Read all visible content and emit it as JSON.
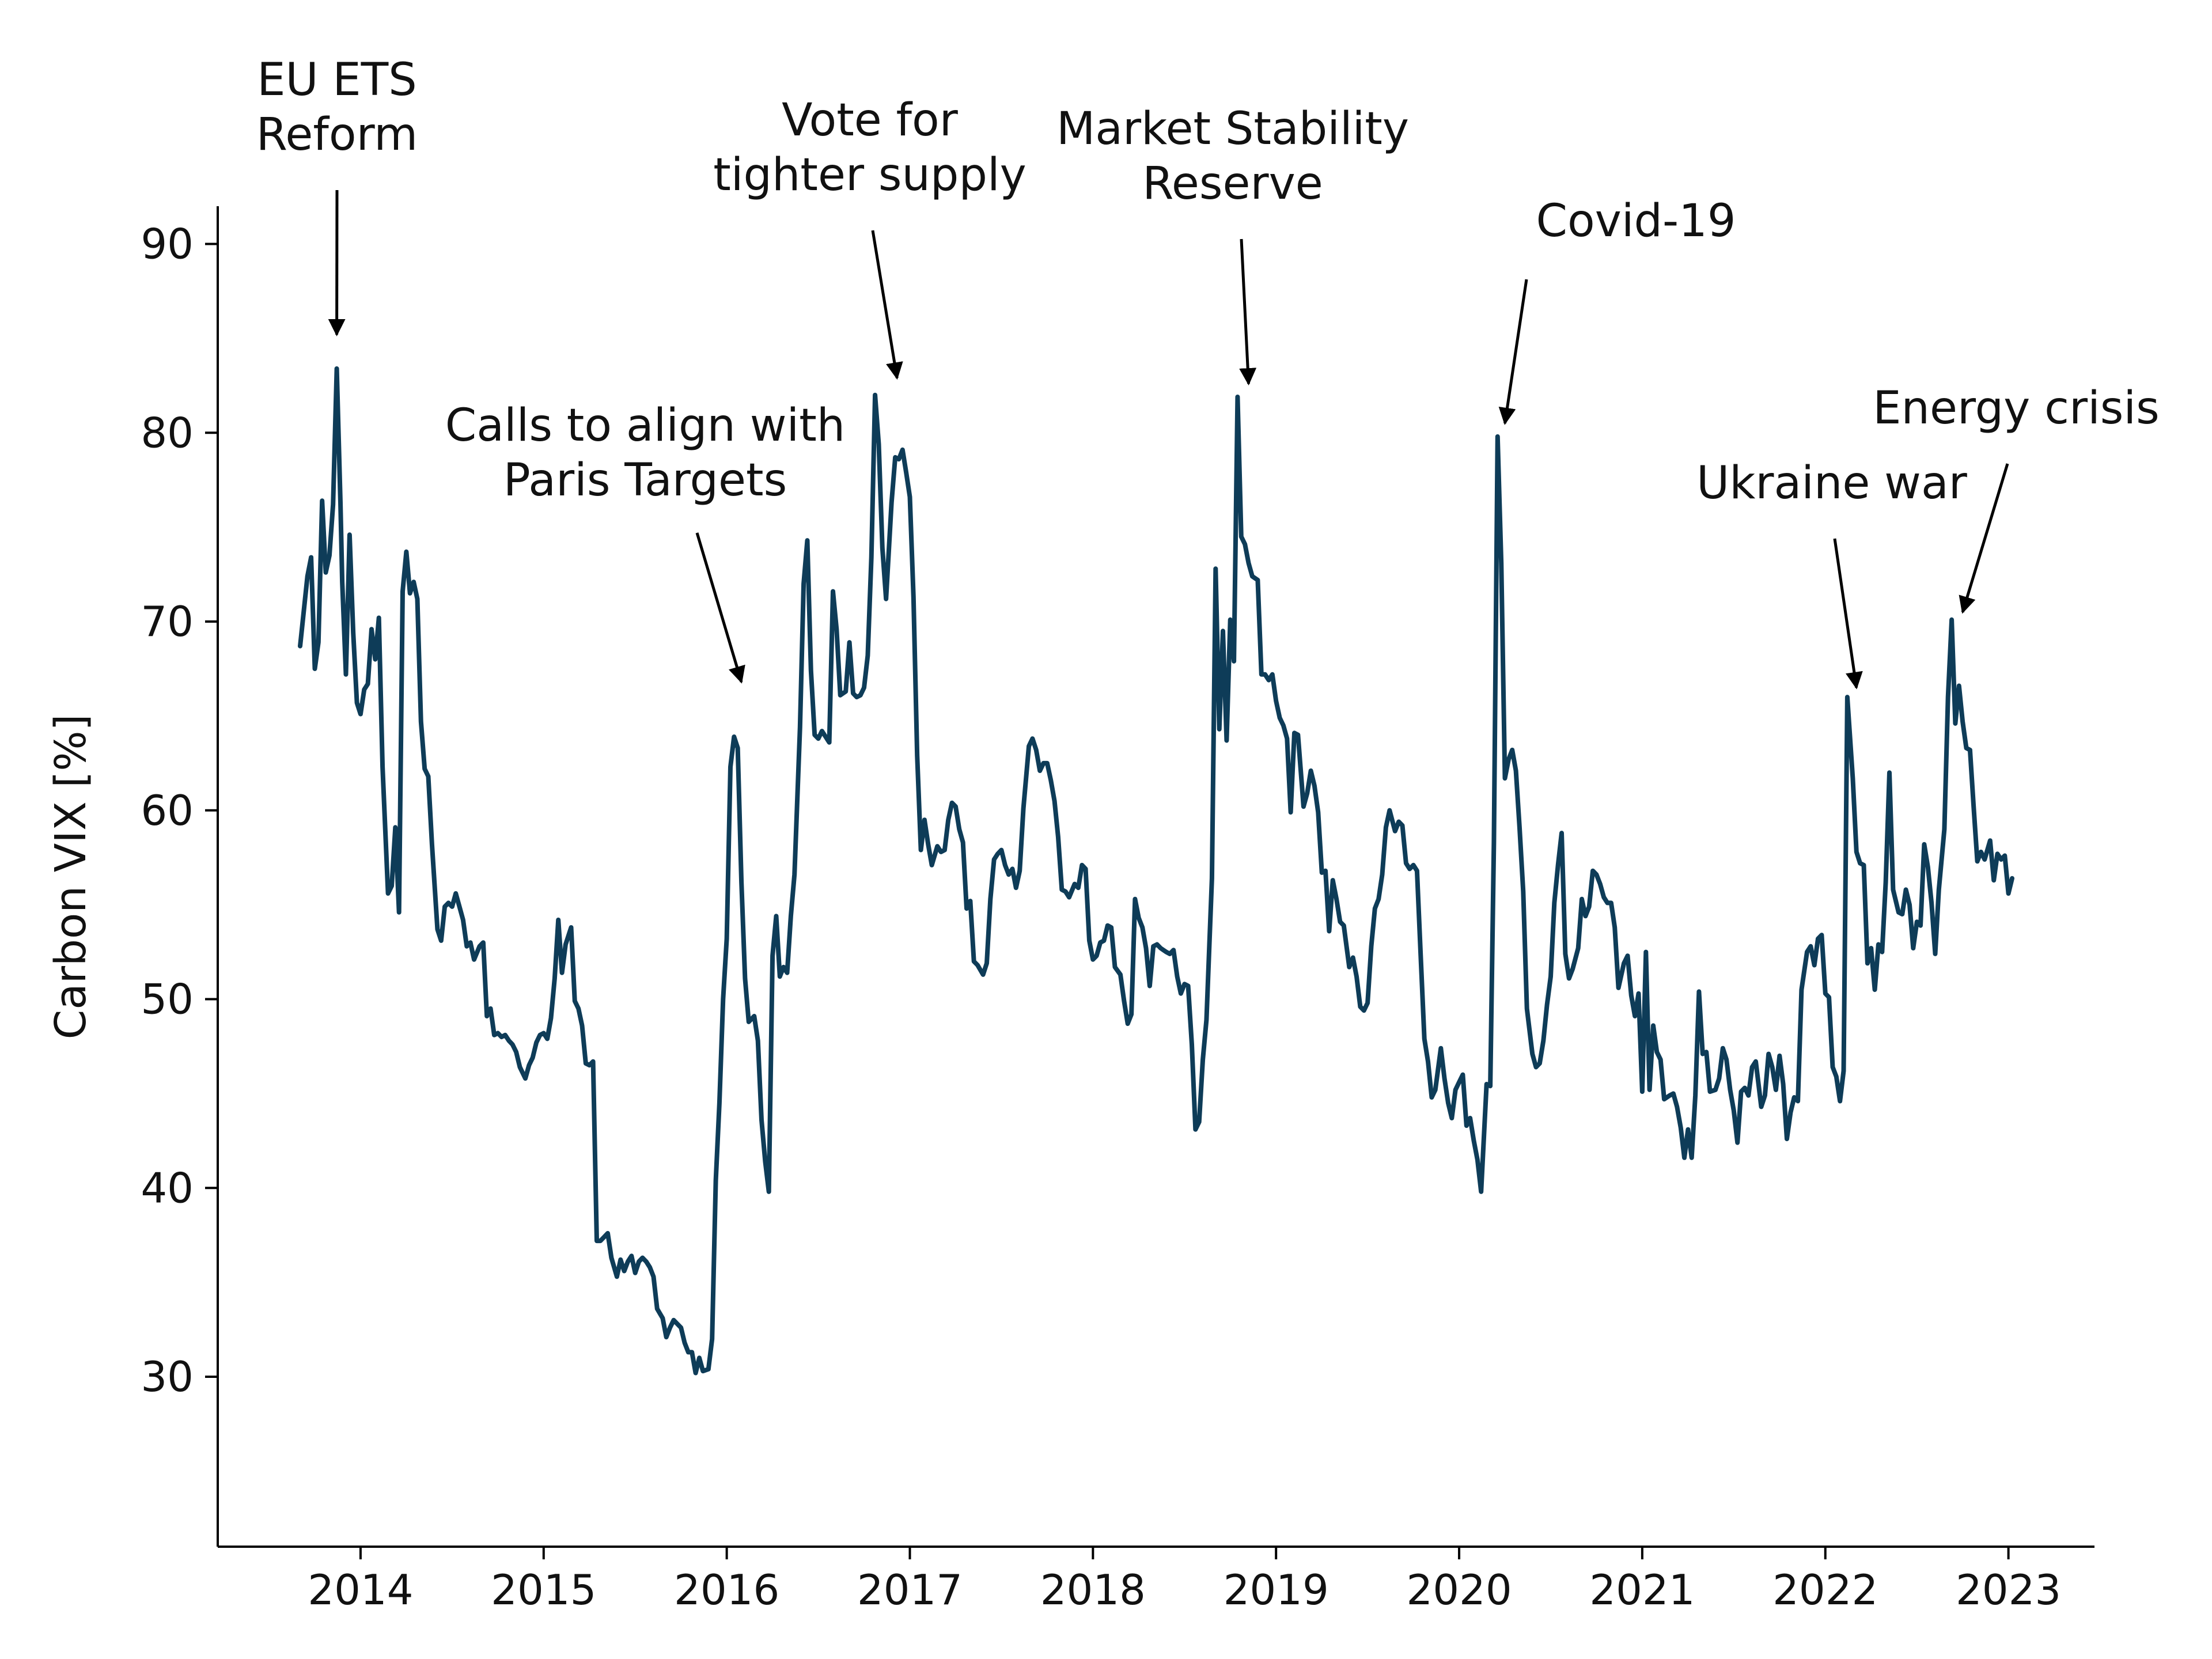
{
  "chart_data": {
    "type": "line",
    "title": "",
    "xlabel": "",
    "ylabel": "Carbon VIX [%]",
    "xlim": [
      2013.22,
      2023.47
    ],
    "ylim": [
      21.0,
      92.0
    ],
    "grid": false,
    "legend": "none",
    "x_ticks": [
      {
        "value": 2014,
        "label": "2014"
      },
      {
        "value": 2015,
        "label": "2015"
      },
      {
        "value": 2016,
        "label": "2016"
      },
      {
        "value": 2017,
        "label": "2017"
      },
      {
        "value": 2018,
        "label": "2018"
      },
      {
        "value": 2019,
        "label": "2019"
      },
      {
        "value": 2020,
        "label": "2020"
      },
      {
        "value": 2021,
        "label": "2021"
      },
      {
        "value": 2022,
        "label": "2022"
      },
      {
        "value": 2023,
        "label": "2023"
      }
    ],
    "y_ticks": [
      {
        "value": 30,
        "label": "30"
      },
      {
        "value": 40,
        "label": "40"
      },
      {
        "value": 50,
        "label": "50"
      },
      {
        "value": 60,
        "label": "60"
      },
      {
        "value": 70,
        "label": "70"
      },
      {
        "value": 80,
        "label": "80"
      },
      {
        "value": 90,
        "label": "90"
      }
    ],
    "series": [
      {
        "color": "#0e3c58",
        "x": [
          2013.67,
          2013.71,
          2013.73,
          2013.75,
          2013.77,
          2013.79,
          2013.81,
          2013.83,
          2013.85,
          2013.87,
          2013.89,
          2013.9,
          2013.92,
          2013.94,
          2013.96,
          2013.98,
          2014.0,
          2014.02,
          2014.04,
          2014.06,
          2014.08,
          2014.1,
          2014.12,
          2014.15,
          2014.17,
          2014.19,
          2014.21,
          2014.23,
          2014.25,
          2014.27,
          2014.29,
          2014.31,
          2014.33,
          2014.35,
          2014.37,
          2014.39,
          2014.42,
          2014.44,
          2014.46,
          2014.48,
          2014.5,
          2014.52,
          2014.54,
          2014.56,
          2014.58,
          2014.6,
          2014.62,
          2014.65,
          2014.67,
          2014.69,
          2014.71,
          2014.73,
          2014.75,
          2014.77,
          2014.79,
          2014.81,
          2014.83,
          2014.85,
          2014.87,
          2014.9,
          2014.92,
          2014.94,
          2014.96,
          2014.98,
          2015.0,
          2015.02,
          2015.04,
          2015.06,
          2015.08,
          2015.1,
          2015.12,
          2015.15,
          2015.17,
          2015.19,
          2015.21,
          2015.23,
          2015.25,
          2015.27,
          2015.29,
          2015.31,
          2015.33,
          2015.35,
          2015.37,
          2015.4,
          2015.42,
          2015.44,
          2015.46,
          2015.48,
          2015.5,
          2015.52,
          2015.54,
          2015.56,
          2015.58,
          2015.6,
          2015.62,
          2015.65,
          2015.67,
          2015.69,
          2015.71,
          2015.73,
          2015.75,
          2015.77,
          2015.79,
          2015.81,
          2015.83,
          2015.85,
          2015.87,
          2015.9,
          2015.92,
          2015.94,
          2015.96,
          2015.98,
          2016.0,
          2016.02,
          2016.04,
          2016.06,
          2016.08,
          2016.1,
          2016.12,
          2016.15,
          2016.17,
          2016.19,
          2016.21,
          2016.23,
          2016.25,
          2016.27,
          2016.29,
          2016.31,
          2016.33,
          2016.35,
          2016.37,
          2016.4,
          2016.42,
          2016.44,
          2016.46,
          2016.48,
          2016.5,
          2016.52,
          2016.54,
          2016.56,
          2016.58,
          2016.6,
          2016.62,
          2016.65,
          2016.67,
          2016.69,
          2016.71,
          2016.73,
          2016.75,
          2016.77,
          2016.79,
          2016.81,
          2016.83,
          2016.85,
          2016.87,
          2016.9,
          2016.92,
          2016.94,
          2016.96,
          2016.98,
          2017.0,
          2017.02,
          2017.04,
          2017.06,
          2017.08,
          2017.1,
          2017.12,
          2017.15,
          2017.17,
          2017.19,
          2017.21,
          2017.23,
          2017.25,
          2017.27,
          2017.29,
          2017.31,
          2017.33,
          2017.35,
          2017.37,
          2017.4,
          2017.42,
          2017.44,
          2017.46,
          2017.48,
          2017.5,
          2017.52,
          2017.54,
          2017.56,
          2017.58,
          2017.6,
          2017.62,
          2017.65,
          2017.67,
          2017.69,
          2017.71,
          2017.73,
          2017.75,
          2017.77,
          2017.79,
          2017.81,
          2017.83,
          2017.85,
          2017.87,
          2017.9,
          2017.92,
          2017.94,
          2017.96,
          2017.98,
          2018.0,
          2018.02,
          2018.04,
          2018.06,
          2018.08,
          2018.1,
          2018.12,
          2018.15,
          2018.17,
          2018.19,
          2018.21,
          2018.23,
          2018.25,
          2018.27,
          2018.29,
          2018.31,
          2018.33,
          2018.35,
          2018.37,
          2018.4,
          2018.42,
          2018.44,
          2018.46,
          2018.48,
          2018.5,
          2018.52,
          2018.54,
          2018.56,
          2018.58,
          2018.6,
          2018.62,
          2018.65,
          2018.67,
          2018.69,
          2018.71,
          2018.73,
          2018.75,
          2018.77,
          2018.79,
          2018.81,
          2018.83,
          2018.85,
          2018.87,
          2018.9,
          2018.92,
          2018.94,
          2018.96,
          2018.98,
          2019.0,
          2019.02,
          2019.04,
          2019.06,
          2019.08,
          2019.1,
          2019.12,
          2019.15,
          2019.17,
          2019.19,
          2019.21,
          2019.23,
          2019.25,
          2019.27,
          2019.29,
          2019.31,
          2019.33,
          2019.35,
          2019.37,
          2019.4,
          2019.42,
          2019.44,
          2019.46,
          2019.48,
          2019.5,
          2019.52,
          2019.54,
          2019.56,
          2019.58,
          2019.6,
          2019.62,
          2019.65,
          2019.67,
          2019.69,
          2019.71,
          2019.73,
          2019.75,
          2019.77,
          2019.79,
          2019.81,
          2019.83,
          2019.85,
          2019.87,
          2019.9,
          2019.92,
          2019.94,
          2019.96,
          2019.98,
          2020.0,
          2020.02,
          2020.04,
          2020.06,
          2020.08,
          2020.1,
          2020.12,
          2020.15,
          2020.17,
          2020.19,
          2020.21,
          2020.23,
          2020.25,
          2020.27,
          2020.29,
          2020.31,
          2020.33,
          2020.35,
          2020.37,
          2020.4,
          2020.42,
          2020.44,
          2020.46,
          2020.48,
          2020.5,
          2020.52,
          2020.54,
          2020.56,
          2020.58,
          2020.6,
          2020.62,
          2020.65,
          2020.67,
          2020.69,
          2020.71,
          2020.73,
          2020.75,
          2020.77,
          2020.79,
          2020.81,
          2020.83,
          2020.85,
          2020.87,
          2020.9,
          2020.92,
          2020.94,
          2020.96,
          2020.98,
          2021.0,
          2021.02,
          2021.04,
          2021.06,
          2021.08,
          2021.1,
          2021.12,
          2021.15,
          2021.17,
          2021.19,
          2021.21,
          2021.23,
          2021.25,
          2021.27,
          2021.29,
          2021.31,
          2021.33,
          2021.35,
          2021.37,
          2021.4,
          2021.42,
          2021.44,
          2021.46,
          2021.48,
          2021.5,
          2021.52,
          2021.54,
          2021.56,
          2021.58,
          2021.6,
          2021.62,
          2021.65,
          2021.67,
          2021.69,
          2021.71,
          2021.73,
          2021.75,
          2021.77,
          2021.79,
          2021.81,
          2021.83,
          2021.85,
          2021.87,
          2021.9,
          2021.92,
          2021.94,
          2021.96,
          2021.98,
          2022.0,
          2022.02,
          2022.04,
          2022.06,
          2022.08,
          2022.1,
          2022.12,
          2022.15,
          2022.17,
          2022.19,
          2022.21,
          2022.23,
          2022.25,
          2022.27,
          2022.29,
          2022.31,
          2022.33,
          2022.35,
          2022.37,
          2022.4,
          2022.42,
          2022.44,
          2022.46,
          2022.48,
          2022.5,
          2022.52,
          2022.54,
          2022.56,
          2022.58,
          2022.6,
          2022.62,
          2022.65,
          2022.67,
          2022.69,
          2022.71,
          2022.73,
          2022.75,
          2022.77,
          2022.79,
          2022.81,
          2022.83,
          2022.85,
          2022.87,
          2022.9,
          2022.92,
          2022.94,
          2022.96,
          2022.98,
          2023.0,
          2023.02
        ],
        "values": [
          68.7,
          72.4,
          73.4,
          67.5,
          68.9,
          76.4,
          72.6,
          73.5,
          76.2,
          83.4,
          76.3,
          72.1,
          67.2,
          74.6,
          69.4,
          65.7,
          65.1,
          66.4,
          66.7,
          69.6,
          68.0,
          70.2,
          62.3,
          55.6,
          56.0,
          59.1,
          54.6,
          71.6,
          73.7,
          71.5,
          72.1,
          71.2,
          64.7,
          62.2,
          61.8,
          58.2,
          53.7,
          53.1,
          54.9,
          55.1,
          54.9,
          55.6,
          54.9,
          54.2,
          52.8,
          53.0,
          52.1,
          52.8,
          53.0,
          49.1,
          49.5,
          48.1,
          48.2,
          48.0,
          48.1,
          47.8,
          47.6,
          47.2,
          46.4,
          45.8,
          46.5,
          46.9,
          47.7,
          48.1,
          48.2,
          47.9,
          49.0,
          51.1,
          54.2,
          51.4,
          52.9,
          53.8,
          49.9,
          49.5,
          48.6,
          46.6,
          46.5,
          46.7,
          37.2,
          37.2,
          37.4,
          37.6,
          36.3,
          35.3,
          36.2,
          35.6,
          36.1,
          36.4,
          35.5,
          36.1,
          36.3,
          36.1,
          35.8,
          35.3,
          33.6,
          33.1,
          32.1,
          32.6,
          33.0,
          32.8,
          32.6,
          31.8,
          31.3,
          31.3,
          30.2,
          31.0,
          30.3,
          30.4,
          32.0,
          40.4,
          44.5,
          50.0,
          53.2,
          62.3,
          63.9,
          63.3,
          56.2,
          51.1,
          48.8,
          49.1,
          47.8,
          43.6,
          41.4,
          39.8,
          52.3,
          54.4,
          51.2,
          51.7,
          51.4,
          54.4,
          56.6,
          64.4,
          72.0,
          74.3,
          67.4,
          64.0,
          63.8,
          64.2,
          63.9,
          63.6,
          71.6,
          69.6,
          66.1,
          66.3,
          68.9,
          66.2,
          66.0,
          66.1,
          66.5,
          68.2,
          73.4,
          82.0,
          79.4,
          73.9,
          71.2,
          76.3,
          78.7,
          78.6,
          79.1,
          77.9,
          76.6,
          71.3,
          62.9,
          57.9,
          59.5,
          58.2,
          57.1,
          58.1,
          57.8,
          57.9,
          59.5,
          60.4,
          60.2,
          59.0,
          58.3,
          54.8,
          55.2,
          52.0,
          51.8,
          51.3,
          51.9,
          55.3,
          57.4,
          57.7,
          57.9,
          57.1,
          56.6,
          56.9,
          55.9,
          56.8,
          60.1,
          63.4,
          63.8,
          63.2,
          62.1,
          62.5,
          62.5,
          61.6,
          60.5,
          58.6,
          55.8,
          55.7,
          55.4,
          56.1,
          55.9,
          57.1,
          56.9,
          53.1,
          52.1,
          52.3,
          53.0,
          53.1,
          53.9,
          53.8,
          51.7,
          51.3,
          49.9,
          48.7,
          49.2,
          55.3,
          54.3,
          53.8,
          52.7,
          50.7,
          52.8,
          52.9,
          52.7,
          52.5,
          52.4,
          52.6,
          51.2,
          50.3,
          50.8,
          50.7,
          47.6,
          43.1,
          43.5,
          46.8,
          48.9,
          56.4,
          72.8,
          64.3,
          69.5,
          63.7,
          70.1,
          67.9,
          81.9,
          74.5,
          74.1,
          73.1,
          72.4,
          72.2,
          67.2,
          67.2,
          66.9,
          67.2,
          65.8,
          64.9,
          64.5,
          63.8,
          59.9,
          64.1,
          64.0,
          60.2,
          60.9,
          62.1,
          61.3,
          59.9,
          56.7,
          56.8,
          53.6,
          56.3,
          55.3,
          54.1,
          53.9,
          51.7,
          52.2,
          51.2,
          49.6,
          49.4,
          49.8,
          52.8,
          54.8,
          55.3,
          56.6,
          59.1,
          60.0,
          58.9,
          59.4,
          59.2,
          57.2,
          56.9,
          57.1,
          56.8,
          52.3,
          47.9,
          46.7,
          44.8,
          45.2,
          47.4,
          45.8,
          44.5,
          43.7,
          45.2,
          45.6,
          46.0,
          43.3,
          43.7,
          42.5,
          41.5,
          39.8,
          45.5,
          45.4,
          58.3,
          79.8,
          73.1,
          61.7,
          62.7,
          63.2,
          62.1,
          59.1,
          55.7,
          49.5,
          47.1,
          46.4,
          46.6,
          47.8,
          49.7,
          51.2,
          55.1,
          57.1,
          58.8,
          52.4,
          51.1,
          51.6,
          52.7,
          55.3,
          54.4,
          54.9,
          56.8,
          56.6,
          56.1,
          55.4,
          55.1,
          55.1,
          53.8,
          50.6,
          51.9,
          52.3,
          50.2,
          49.1,
          50.3,
          45.1,
          52.5,
          45.2,
          48.6,
          47.2,
          46.8,
          44.7,
          44.9,
          45.0,
          44.3,
          43.2,
          41.6,
          43.1,
          41.6,
          44.9,
          50.4,
          47.1,
          47.2,
          45.1,
          45.2,
          45.8,
          47.4,
          46.8,
          45.2,
          44.1,
          42.4,
          45.1,
          45.3,
          44.9,
          46.4,
          46.7,
          44.3,
          44.9,
          47.1,
          46.4,
          45.2,
          47.0,
          45.5,
          42.6,
          44.0,
          44.8,
          44.6,
          50.5,
          52.5,
          52.8,
          51.8,
          53.2,
          53.4,
          50.3,
          50.1,
          46.4,
          45.9,
          44.6,
          46.2,
          66.0,
          61.7,
          57.8,
          57.2,
          57.1,
          51.9,
          52.7,
          50.5,
          52.9,
          52.5,
          56.2,
          62.0,
          55.8,
          54.6,
          54.5,
          55.8,
          55.0,
          52.7,
          54.1,
          53.9,
          58.2,
          57.0,
          55.1,
          52.4,
          55.8,
          59.0,
          66.0,
          70.1,
          64.6,
          66.6,
          64.7,
          63.3,
          63.2,
          60.2,
          57.3,
          57.8,
          57.4,
          58.4,
          56.3,
          57.7,
          57.4,
          57.6,
          55.6,
          56.4
        ]
      }
    ],
    "annotations": [
      {
        "text_lines": [
          "EU ETS",
          "Reform"
        ],
        "x": 2013.87,
        "y": 85.2
      },
      {
        "text_lines": [
          "Calls to align with",
          "Paris Targets"
        ],
        "x": 2016.08,
        "y": 66.8
      },
      {
        "text_lines": [
          "Vote for",
          "tighter supply"
        ],
        "x": 2016.93,
        "y": 82.9
      },
      {
        "text_lines": [
          "Market Stability",
          "Reserve"
        ],
        "x": 2018.85,
        "y": 82.6
      },
      {
        "text_lines": [
          "Covid-19"
        ],
        "x": 2020.25,
        "y": 80.5
      },
      {
        "text_lines": [
          "Ukraine war"
        ],
        "x": 2022.17,
        "y": 66.5
      },
      {
        "text_lines": [
          "Energy crisis"
        ],
        "x": 2022.75,
        "y": 70.5
      }
    ]
  }
}
